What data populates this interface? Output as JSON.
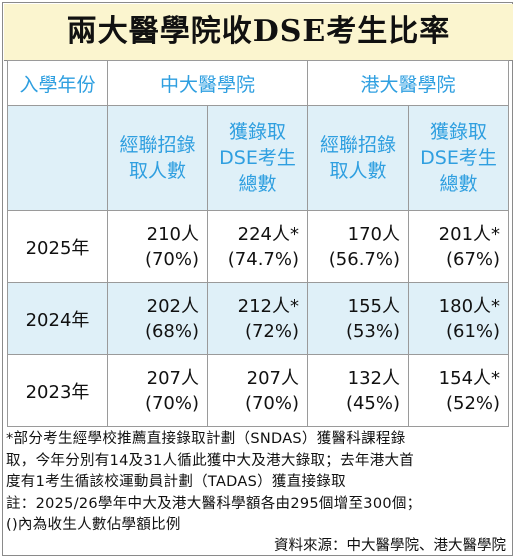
{
  "title": "兩大醫學院收DSE考生比率",
  "header": {
    "year_label": "入學年份",
    "cuhk": "中大醫學院",
    "hku": "港大醫學院",
    "cuhk_jupas_l1": "經聯招錄",
    "cuhk_jupas_l2": "取人數",
    "cuhk_dse_l1": "獲錄取",
    "cuhk_dse_l2": "DSE考生",
    "cuhk_dse_l3": "總數",
    "hku_jupas_l1": "經聯招錄",
    "hku_jupas_l2": "取人數",
    "hku_dse_l1": "獲錄取",
    "hku_dse_l2": "DSE考生",
    "hku_dse_l3": "總數"
  },
  "rows": [
    {
      "year": "2025年",
      "cuhk_jupas": "210人",
      "cuhk_jupas_pct": "(70%)",
      "cuhk_dse": "224人*",
      "cuhk_dse_pct": "(74.7%)",
      "hku_jupas": "170人",
      "hku_jupas_pct": "(56.7%)",
      "hku_dse": "201人*",
      "hku_dse_pct": "(67%)"
    },
    {
      "year": "2024年",
      "cuhk_jupas": "202人",
      "cuhk_jupas_pct": "(68%)",
      "cuhk_dse": "212人*",
      "cuhk_dse_pct": "(72%)",
      "hku_jupas": "155人",
      "hku_jupas_pct": "(53%)",
      "hku_dse": "180人*",
      "hku_dse_pct": "(61%)"
    },
    {
      "year": "2023年",
      "cuhk_jupas": "207人",
      "cuhk_jupas_pct": "(70%)",
      "cuhk_dse": "207人",
      "cuhk_dse_pct": "(70%)",
      "hku_jupas": "132人",
      "hku_jupas_pct": "(45%)",
      "hku_dse": "154人*",
      "hku_dse_pct": "(52%)"
    }
  ],
  "notes": {
    "line1": "*部分考生經學校推薦直接錄取計劃（SNDAS）獲醫科課程錄",
    "line2": "取，今年分別有14及31人循此獲中大及港大錄取；去年港大首",
    "line3": "度有1考生循該校運動員計劃（TADAS）獲直接錄取",
    "line4": "註：2025/26學年中大及港大醫科學額各由295個增至300個；",
    "line5": "()內為收生人數佔學額比例"
  },
  "source": "資料來源：中大醫學院、港大醫學院",
  "colors": {
    "title_bg": "#fbf5cf",
    "header_text": "#2f9fe0",
    "shaded_bg": "#dff0f8"
  }
}
